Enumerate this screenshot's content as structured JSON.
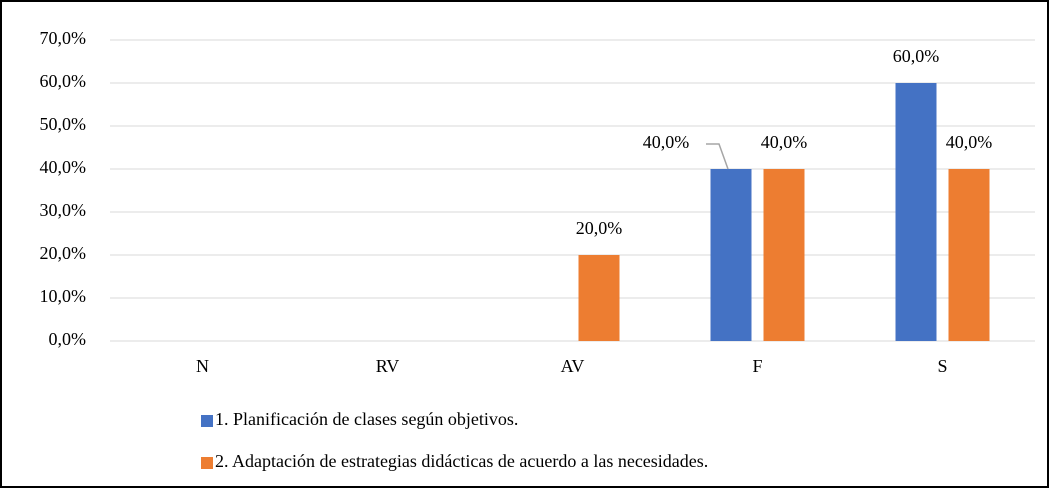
{
  "chart_data": {
    "type": "bar",
    "categories": [
      "N",
      "RV",
      "AV",
      "F",
      "S"
    ],
    "series": [
      {
        "name": "1. Planificación de clases según objetivos.",
        "color": "#4472c4",
        "values": [
          0,
          0,
          0,
          40,
          60
        ],
        "value_labels": [
          null,
          null,
          null,
          "40,0%",
          "60,0%"
        ]
      },
      {
        "name": "2. Adaptación de estrategias didácticas de acuerdo a las necesidades.",
        "color": "#ed7d31",
        "values": [
          0,
          0,
          20,
          40,
          40
        ],
        "value_labels": [
          null,
          null,
          "20,0%",
          "40,0%",
          "40,0%"
        ]
      }
    ],
    "ylim": [
      0,
      70
    ],
    "yticks": [
      {
        "value": 0,
        "label": "0,0%"
      },
      {
        "value": 10,
        "label": "10,0%"
      },
      {
        "value": 20,
        "label": "20,0%"
      },
      {
        "value": 30,
        "label": "30,0%"
      },
      {
        "value": 40,
        "label": "40,0%"
      },
      {
        "value": 50,
        "label": "50,0%"
      },
      {
        "value": 60,
        "label": "60,0%"
      },
      {
        "value": 70,
        "label": "70,0%"
      }
    ],
    "grid": true,
    "legend": "bottom"
  }
}
